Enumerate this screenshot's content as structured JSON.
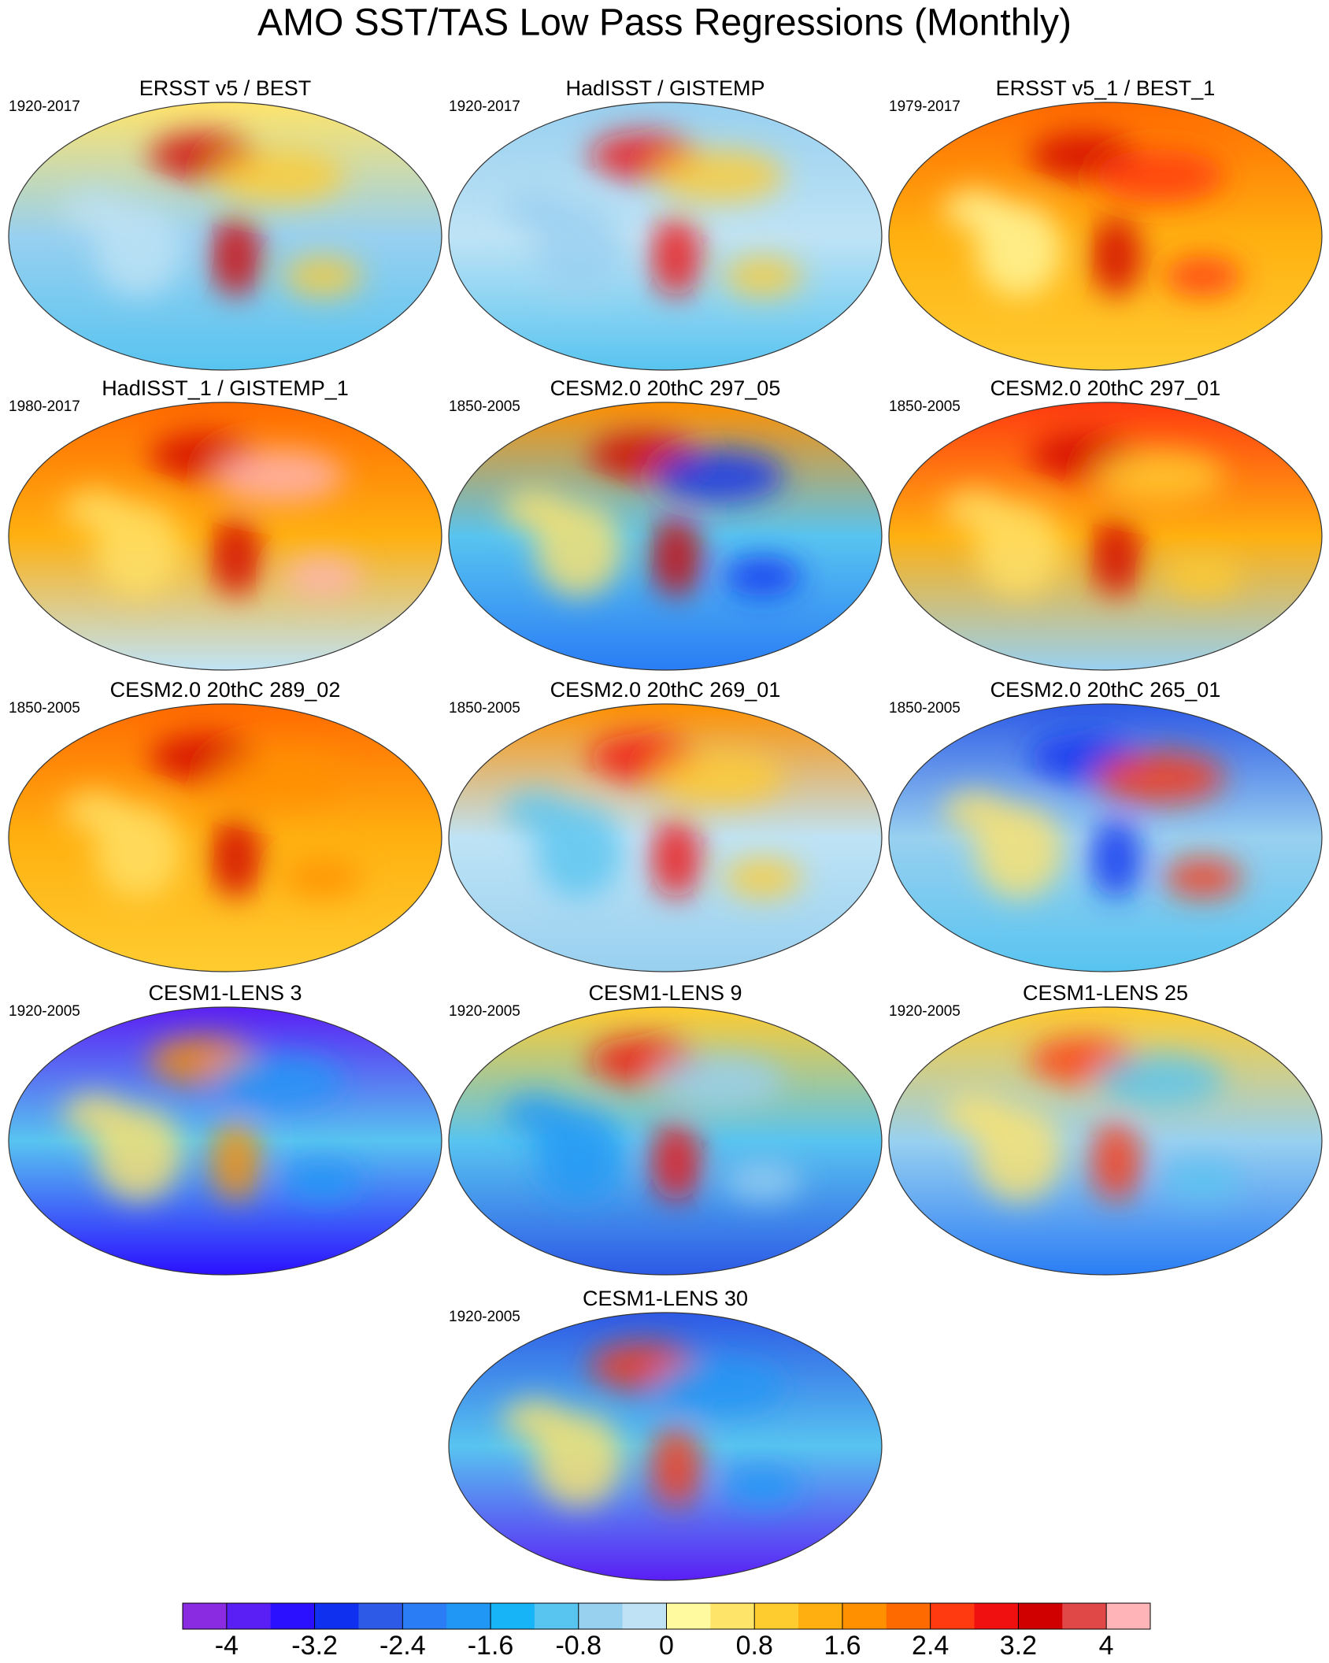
{
  "title": "AMO SST/TAS Low Pass Regressions (Monthly)",
  "panels": [
    {
      "title": "ERSST v5 / BEST",
      "period": "1920-2017"
    },
    {
      "title": "HadISST / GISTEMP",
      "period": "1920-2017"
    },
    {
      "title": "ERSST v5_1 / BEST_1",
      "period": "1979-2017"
    },
    {
      "title": "HadISST_1 / GISTEMP_1",
      "period": "1980-2017"
    },
    {
      "title": "CESM2.0 20thC 297_05",
      "period": "1850-2005"
    },
    {
      "title": "CESM2.0 20thC 297_01",
      "period": "1850-2005"
    },
    {
      "title": "CESM2.0 20thC 289_02",
      "period": "1850-2005"
    },
    {
      "title": "CESM2.0 20thC 269_01",
      "period": "1850-2005"
    },
    {
      "title": "CESM2.0 20thC 265_01",
      "period": "1850-2005"
    },
    {
      "title": "CESM1-LENS 3",
      "period": "1920-2005"
    },
    {
      "title": "CESM1-LENS 9",
      "period": "1920-2005"
    },
    {
      "title": "CESM1-LENS 25",
      "period": "1920-2005"
    },
    {
      "title": "CESM1-LENS 30",
      "period": "1920-2005"
    }
  ],
  "colorbar": {
    "lim": [
      -4.4,
      4.4
    ],
    "ticks": [
      -4,
      -3.2,
      -2.4,
      -1.6,
      -0.8,
      0,
      0.8,
      1.6,
      2.4,
      3.2,
      4
    ],
    "colors": [
      "#8a2be2",
      "#5a1ff5",
      "#2b10ff",
      "#1030f0",
      "#2d5ae6",
      "#2a7df5",
      "#2097f5",
      "#18b4f8",
      "#58c4f0",
      "#98d0f0",
      "#bfe3f5",
      "#fffaa0",
      "#ffe46a",
      "#ffcc30",
      "#ffb010",
      "#ff9000",
      "#ff6a00",
      "#ff3a10",
      "#f01010",
      "#d00000",
      "#e04848",
      "#ffb4b8"
    ]
  }
}
